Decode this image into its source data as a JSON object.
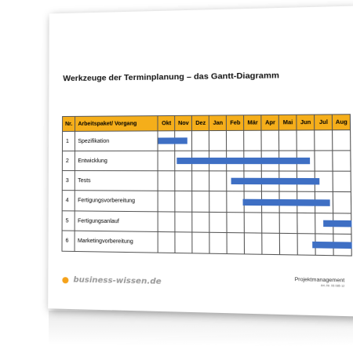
{
  "title": "Werkzeuge der Terminplanung – das Gantt-Diagramm",
  "table": {
    "header_nr": "Nr.",
    "header_task": "Arbeitspaket/ Vorgang",
    "months": [
      "Okt",
      "Nov",
      "Dez",
      "Jan",
      "Feb",
      "Mär",
      "Apr",
      "Mai",
      "Jun",
      "Jul",
      "Aug"
    ],
    "header_color": "#f5ae1a",
    "bar_color": "#3e6fc4",
    "rows": [
      {
        "nr": "1",
        "task": "Spezifikation",
        "start_month": 0.0,
        "end_month": 1.7
      },
      {
        "nr": "2",
        "task": "Entwicklung",
        "start_month": 1.1,
        "end_month": 8.7
      },
      {
        "nr": "3",
        "task": "Tests",
        "start_month": 4.2,
        "end_month": 9.2
      },
      {
        "nr": "4",
        "task": "Fertigungsvorbereitung",
        "start_month": 4.9,
        "end_month": 9.8
      },
      {
        "nr": "5",
        "task": "Fertigungsanlauf",
        "start_month": 9.4,
        "end_month": 11.0
      },
      {
        "nr": "6",
        "task": "Marketingvorbereitung",
        "start_month": 8.8,
        "end_month": 11.4
      }
    ]
  },
  "footer": {
    "logo": "business-wissen.de",
    "category": "Projektmanagement",
    "article": "Art.-Nr. 06 085 12"
  }
}
